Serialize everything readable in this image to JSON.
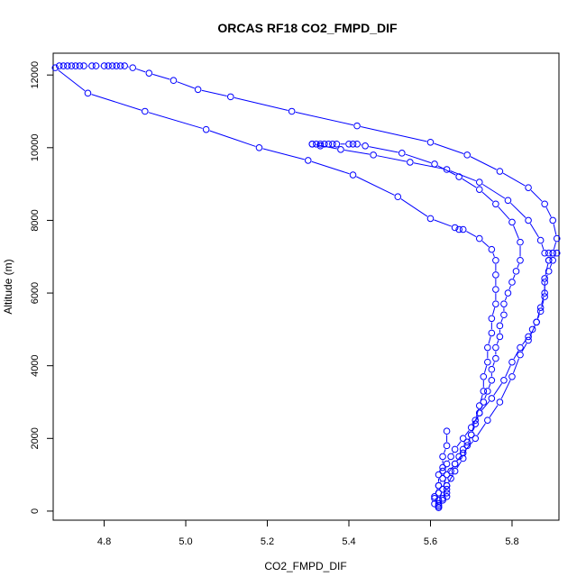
{
  "chart_data": {
    "type": "line",
    "title": "ORCAS RF18 CO2_FMPD_DIF",
    "xlabel": "CO2_FMPD_DIF",
    "ylabel": "Altitude (m)",
    "xlim": [
      4.675,
      5.915
    ],
    "ylim": [
      -250,
      12600
    ],
    "xticks": [
      4.8,
      5.0,
      5.2,
      5.4,
      5.6,
      5.8
    ],
    "xtick_labels": [
      "4.8",
      "5.0",
      "5.2",
      "5.4",
      "5.6",
      "5.8"
    ],
    "yticks": [
      0,
      2000,
      4000,
      6000,
      8000,
      10000,
      12000
    ],
    "ytick_labels": [
      "0",
      "2000",
      "4000",
      "6000",
      "8000",
      "10000",
      "12000"
    ],
    "grid": false,
    "line_style": "line-and-circle-markers",
    "color": "#0000ff",
    "series": [
      {
        "points": [
          [
            5.62,
            100
          ],
          [
            5.62,
            150
          ],
          [
            5.62,
            200
          ],
          [
            5.63,
            300
          ],
          [
            5.64,
            400
          ],
          [
            5.64,
            500
          ],
          [
            5.64,
            600
          ],
          [
            5.64,
            700
          ],
          [
            5.65,
            900
          ],
          [
            5.65,
            1100
          ],
          [
            5.66,
            1300
          ],
          [
            5.67,
            1500
          ],
          [
            5.68,
            1700
          ],
          [
            5.69,
            1900
          ],
          [
            5.7,
            2100
          ],
          [
            5.71,
            2400
          ],
          [
            5.72,
            2700
          ],
          [
            5.73,
            3000
          ],
          [
            5.74,
            3300
          ],
          [
            5.75,
            3600
          ],
          [
            5.75,
            3900
          ],
          [
            5.76,
            4200
          ],
          [
            5.76,
            4500
          ],
          [
            5.77,
            4800
          ],
          [
            5.77,
            5100
          ],
          [
            5.78,
            5400
          ],
          [
            5.78,
            5700
          ],
          [
            5.79,
            6000
          ],
          [
            5.8,
            6300
          ],
          [
            5.81,
            6600
          ],
          [
            5.82,
            6900
          ],
          [
            5.82,
            7400
          ],
          [
            5.8,
            7950
          ],
          [
            5.76,
            8450
          ],
          [
            5.72,
            8850
          ],
          [
            5.67,
            9200
          ],
          [
            5.61,
            9550
          ],
          [
            5.53,
            9850
          ],
          [
            5.44,
            10050
          ],
          [
            5.42,
            10100
          ],
          [
            5.41,
            10100
          ],
          [
            5.4,
            10100
          ],
          [
            5.37,
            10100
          ],
          [
            5.36,
            10100
          ],
          [
            5.35,
            10100
          ],
          [
            5.34,
            10100
          ],
          [
            5.33,
            10100
          ],
          [
            5.33,
            10050
          ],
          [
            5.32,
            10100
          ],
          [
            5.31,
            10100
          ]
        ]
      },
      {
        "points": [
          [
            5.31,
            10100
          ],
          [
            5.38,
            9950
          ],
          [
            5.46,
            9800
          ],
          [
            5.55,
            9600
          ],
          [
            5.64,
            9400
          ],
          [
            5.72,
            9050
          ],
          [
            5.79,
            8550
          ],
          [
            5.84,
            8000
          ],
          [
            5.87,
            7450
          ],
          [
            5.88,
            7100
          ],
          [
            5.89,
            7100
          ],
          [
            5.9,
            7100
          ],
          [
            5.91,
            7100
          ],
          [
            5.9,
            6900
          ],
          [
            5.89,
            6600
          ],
          [
            5.88,
            6300
          ],
          [
            5.88,
            5900
          ],
          [
            5.87,
            5500
          ],
          [
            5.86,
            5200
          ],
          [
            5.85,
            5000
          ],
          [
            5.84,
            4800
          ],
          [
            5.82,
            4500
          ],
          [
            5.8,
            4100
          ],
          [
            5.78,
            3600
          ],
          [
            5.75,
            3100
          ],
          [
            5.72,
            2700
          ],
          [
            5.7,
            2300
          ],
          [
            5.68,
            2000
          ],
          [
            5.66,
            1700
          ],
          [
            5.65,
            1500
          ],
          [
            5.64,
            1300
          ],
          [
            5.63,
            1100
          ],
          [
            5.63,
            900
          ],
          [
            5.62,
            700
          ],
          [
            5.62,
            500
          ],
          [
            5.61,
            350
          ],
          [
            5.61,
            200
          ],
          [
            5.62,
            100
          ]
        ]
      },
      {
        "points": [
          [
            5.62,
            100
          ],
          [
            5.63,
            350
          ],
          [
            5.64,
            700
          ],
          [
            5.66,
            1100
          ],
          [
            5.68,
            1450
          ],
          [
            5.69,
            1800
          ],
          [
            5.7,
            2100
          ],
          [
            5.71,
            2500
          ],
          [
            5.72,
            2900
          ],
          [
            5.73,
            3300
          ],
          [
            5.73,
            3700
          ],
          [
            5.74,
            4100
          ],
          [
            5.74,
            4500
          ],
          [
            5.75,
            4900
          ],
          [
            5.75,
            5300
          ],
          [
            5.76,
            5700
          ],
          [
            5.76,
            6100
          ],
          [
            5.76,
            6500
          ],
          [
            5.76,
            6900
          ],
          [
            5.75,
            7200
          ],
          [
            5.72,
            7500
          ],
          [
            5.68,
            7750
          ],
          [
            5.67,
            7750
          ],
          [
            5.66,
            7800
          ],
          [
            5.6,
            8050
          ],
          [
            5.52,
            8650
          ],
          [
            5.41,
            9250
          ],
          [
            5.3,
            9650
          ],
          [
            5.18,
            10000
          ],
          [
            5.05,
            10500
          ],
          [
            4.9,
            11000
          ],
          [
            4.76,
            11500
          ],
          [
            4.68,
            12200
          ],
          [
            4.69,
            12250
          ],
          [
            4.7,
            12250
          ],
          [
            4.71,
            12250
          ],
          [
            4.72,
            12250
          ],
          [
            4.73,
            12250
          ],
          [
            4.74,
            12250
          ],
          [
            4.75,
            12250
          ],
          [
            4.77,
            12250
          ],
          [
            4.78,
            12250
          ],
          [
            4.8,
            12250
          ],
          [
            4.81,
            12250
          ],
          [
            4.82,
            12250
          ],
          [
            4.83,
            12250
          ],
          [
            4.84,
            12250
          ],
          [
            4.85,
            12250
          ],
          [
            4.87,
            12200
          ],
          [
            4.91,
            12050
          ],
          [
            4.97,
            11850
          ],
          [
            5.03,
            11600
          ],
          [
            5.11,
            11400
          ],
          [
            5.26,
            11000
          ],
          [
            5.42,
            10600
          ],
          [
            5.6,
            10150
          ],
          [
            5.69,
            9800
          ],
          [
            5.77,
            9350
          ],
          [
            5.84,
            8900
          ],
          [
            5.88,
            8450
          ],
          [
            5.9,
            8000
          ],
          [
            5.91,
            7500
          ],
          [
            5.9,
            7100
          ],
          [
            5.89,
            6900
          ]
        ]
      },
      {
        "points": [
          [
            5.89,
            6900
          ],
          [
            5.88,
            6400
          ],
          [
            5.88,
            6000
          ],
          [
            5.87,
            5600
          ],
          [
            5.86,
            5200
          ],
          [
            5.84,
            4700
          ],
          [
            5.82,
            4300
          ],
          [
            5.8,
            3700
          ],
          [
            5.77,
            3000
          ],
          [
            5.74,
            2500
          ],
          [
            5.71,
            2000
          ],
          [
            5.68,
            1600
          ],
          [
            5.66,
            1300
          ],
          [
            5.64,
            1000
          ],
          [
            5.63,
            600
          ],
          [
            5.62,
            300
          ],
          [
            5.62,
            150
          ],
          [
            5.61,
            400
          ],
          [
            5.62,
            700
          ],
          [
            5.62,
            1000
          ],
          [
            5.63,
            1200
          ],
          [
            5.63,
            1500
          ],
          [
            5.64,
            1800
          ],
          [
            5.64,
            2200
          ]
        ]
      }
    ]
  }
}
